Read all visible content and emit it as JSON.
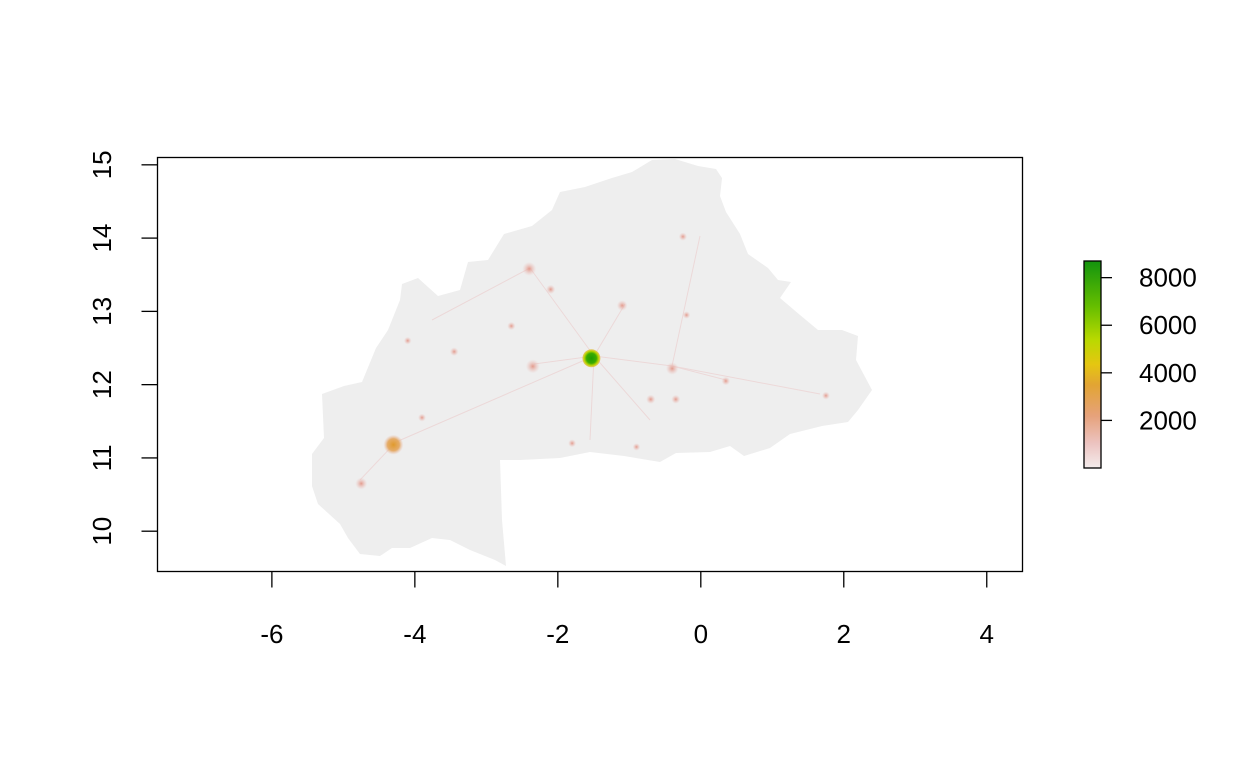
{
  "chart_data": {
    "type": "heatmap",
    "title": "",
    "xlabel": "",
    "ylabel": "",
    "xlim": [
      -7.6,
      4.5
    ],
    "ylim": [
      9.45,
      15.1
    ],
    "x_ticks": [
      -6,
      -4,
      -2,
      0,
      2,
      4
    ],
    "y_ticks": [
      10,
      11,
      12,
      13,
      14,
      15
    ],
    "x_tick_labels": [
      "-6",
      "-4",
      "-2",
      "0",
      "2",
      "4"
    ],
    "y_tick_labels": [
      "10",
      "11",
      "12",
      "13",
      "14",
      "15"
    ],
    "grid": false,
    "value_range": [
      0,
      8700
    ],
    "background_color": "#eeeeee",
    "colors": [
      "#eedfe0",
      "#e9a29a",
      "#e0a23a",
      "#e5c611",
      "#9ed600",
      "#57b800",
      "#1a9a00"
    ],
    "hotspots": [
      {
        "lon": -1.53,
        "lat": 12.36,
        "value": 8600
      },
      {
        "lon": -4.3,
        "lat": 11.18,
        "value": 2500
      },
      {
        "lon": -2.4,
        "lat": 13.58,
        "value": 1400
      },
      {
        "lon": -2.35,
        "lat": 12.25,
        "value": 1200
      },
      {
        "lon": -0.4,
        "lat": 12.22,
        "value": 1000
      },
      {
        "lon": -4.75,
        "lat": 10.65,
        "value": 900
      },
      {
        "lon": -1.1,
        "lat": 13.08,
        "value": 700
      },
      {
        "lon": -2.1,
        "lat": 13.3,
        "value": 500
      },
      {
        "lon": -0.7,
        "lat": 11.8,
        "value": 500
      },
      {
        "lon": -0.35,
        "lat": 11.8,
        "value": 450
      },
      {
        "lon": 0.35,
        "lat": 12.05,
        "value": 400
      },
      {
        "lon": -3.45,
        "lat": 12.45,
        "value": 400
      },
      {
        "lon": -0.25,
        "lat": 14.02,
        "value": 350
      },
      {
        "lon": -2.65,
        "lat": 12.8,
        "value": 350
      },
      {
        "lon": -1.8,
        "lat": 11.2,
        "value": 300
      },
      {
        "lon": -3.9,
        "lat": 11.55,
        "value": 300
      },
      {
        "lon": 1.75,
        "lat": 11.85,
        "value": 300
      },
      {
        "lon": -0.9,
        "lat": 11.15,
        "value": 250
      },
      {
        "lon": -4.1,
        "lat": 12.6,
        "value": 250
      },
      {
        "lon": -0.2,
        "lat": 12.95,
        "value": 250
      }
    ],
    "legend": {
      "placement": "right",
      "min": 0,
      "max": 8700,
      "ticks": [
        2000,
        4000,
        6000,
        8000
      ],
      "tick_labels": [
        "2000",
        "4000",
        "6000",
        "8000"
      ]
    }
  }
}
